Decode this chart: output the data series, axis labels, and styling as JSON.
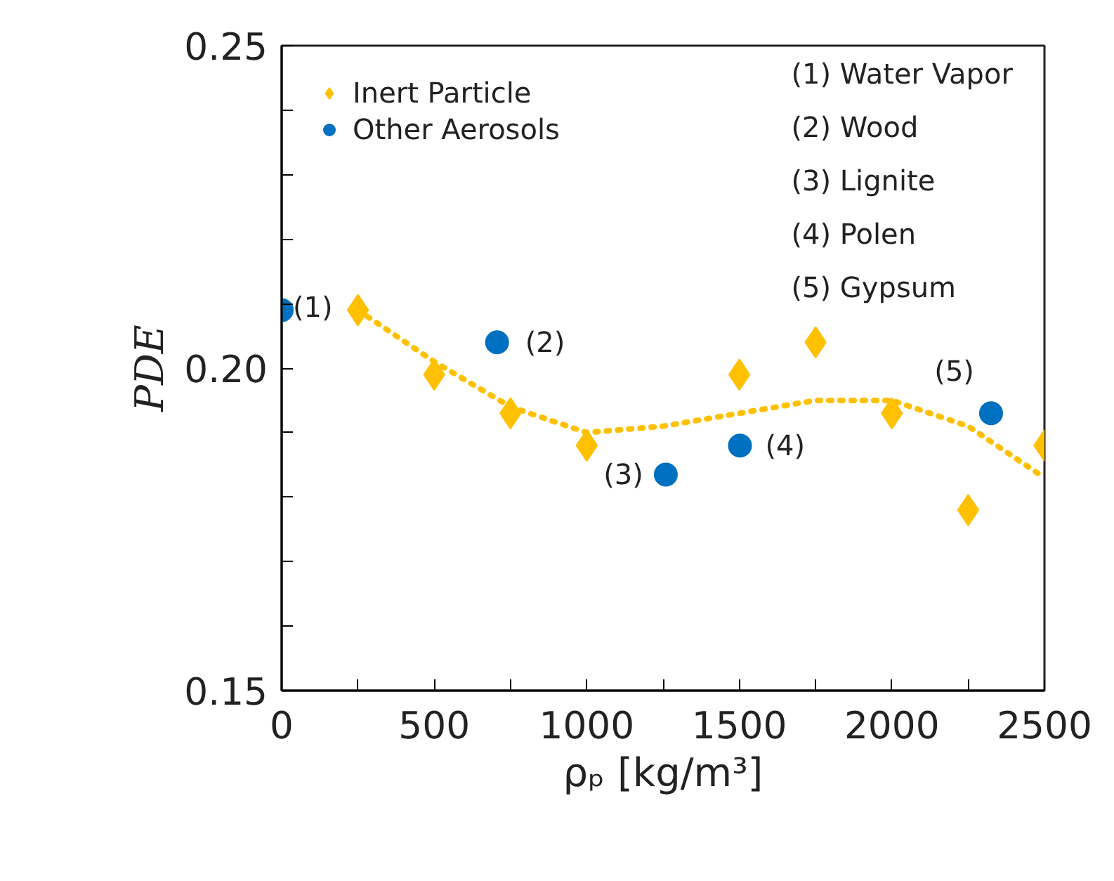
{
  "chart_data": {
    "type": "scatter",
    "xlabel": "ρₚ [kg/m³]",
    "ylabel": "PDE",
    "xlim": [
      0,
      2500
    ],
    "ylim": [
      0.15,
      0.25
    ],
    "xticks": [
      0,
      {
        "value": 250,
        "label": null
      },
      500,
      {
        "value": 750,
        "label": null
      },
      1000,
      {
        "value": 1250,
        "label": null
      },
      1500,
      {
        "value": 1750,
        "label": null
      },
      2000,
      {
        "value": 2250,
        "label": null
      },
      2500
    ],
    "yticks": [
      {
        "value": 0.15,
        "label": "0.15"
      },
      {
        "value": 0.16,
        "label": null
      },
      {
        "value": 0.17,
        "label": null
      },
      {
        "value": 0.18,
        "label": null
      },
      {
        "value": 0.19,
        "label": null
      },
      {
        "value": 0.2,
        "label": "0.20"
      },
      {
        "value": 0.21,
        "label": null
      },
      {
        "value": 0.22,
        "label": null
      },
      {
        "value": 0.23,
        "label": null
      },
      {
        "value": 0.24,
        "label": null
      },
      {
        "value": 0.25,
        "label": "0.25"
      }
    ],
    "grid": false,
    "legend": "top left",
    "series": [
      {
        "name": "Inert Particle",
        "color": "#ffc000",
        "marker": "diamond",
        "x": [
          250,
          500,
          750,
          1000,
          1500,
          1750,
          2000,
          2250,
          2500
        ],
        "values": [
          0.209,
          0.199,
          0.193,
          0.188,
          0.199,
          0.204,
          0.193,
          0.178,
          0.188
        ]
      },
      {
        "name": "Other Aerosols",
        "color": "#0070c0",
        "marker": "circle",
        "x": [
          0,
          706,
          1259,
          1502,
          2325
        ],
        "values": [
          0.209,
          0.204,
          0.1835,
          0.188,
          0.193
        ]
      },
      {
        "type": "line",
        "color": "#ffc000",
        "marker": "none",
        "line_style": "dotted",
        "x": [
          250,
          500,
          750,
          1000,
          1250,
          1500,
          1750,
          2000,
          2250,
          2500
        ],
        "values": [
          0.209,
          0.201,
          0.194,
          0.19,
          0.191,
          0.193,
          0.195,
          0.195,
          0.191,
          0.183
        ]
      }
    ],
    "annotations": [
      {
        "text": "(1)",
        "x": 0,
        "y": 0.209
      },
      {
        "text": "(2)",
        "x": 706,
        "y": 0.204
      },
      {
        "text": "(3)",
        "x": 1259,
        "y": 0.1835
      },
      {
        "text": "(4)",
        "x": 1502,
        "y": 0.188
      },
      {
        "text": "(5)",
        "x": 2325,
        "y": 0.193
      },
      "(1) Water Vapor",
      "(2) Wood",
      "(3) Lignite",
      "(4) Polen",
      "(5) Gypsum"
    ]
  }
}
